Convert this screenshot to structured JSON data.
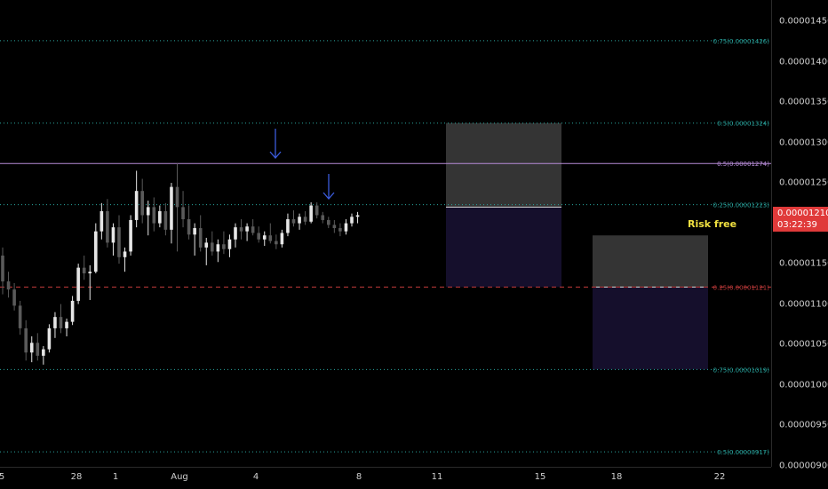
{
  "chart_data": {
    "type": "candlestick",
    "title": "",
    "y_axis": {
      "ticks": [
        "0.00001450",
        "0.00001400",
        "0.00001350",
        "0.00001300",
        "0.00001250",
        "0.00001200",
        "0.00001150",
        "0.00001100",
        "0.00001050",
        "0.00001000",
        "0.00000950",
        "0.00000900"
      ],
      "range": [
        8.985e-06,
        1.4764e-05
      ]
    },
    "x_axis": {
      "ticks": [
        "5",
        "28",
        "1",
        "Aug",
        "4",
        "8",
        "11",
        "15",
        "18",
        "22"
      ]
    },
    "current_price": {
      "value": "0.00001210",
      "countdown": "03:22:39",
      "color": "#e03a3a"
    },
    "candles": [
      [
        1.16e-05,
        1.17e-05,
        1.112e-05,
        1.128e-05
      ],
      [
        1.128e-05,
        1.14e-05,
        1.108e-05,
        1.118e-05
      ],
      [
        1.118e-05,
        1.126e-05,
        1.092e-05,
        1.098e-05
      ],
      [
        1.098e-05,
        1.104e-05,
        1.062e-05,
        1.07e-05
      ],
      [
        1.07e-05,
        1.08e-05,
        1.03e-05,
        1.04e-05
      ],
      [
        1.04e-05,
        1.06e-05,
        1.028e-05,
        1.052e-05
      ],
      [
        1.052e-05,
        1.064e-05,
        1.03e-05,
        1.036e-05
      ],
      [
        1.036e-05,
        1.048e-05,
        1.025e-05,
        1.044e-05
      ],
      [
        1.044e-05,
        1.075e-05,
        1.04e-05,
        1.07e-05
      ],
      [
        1.07e-05,
        1.09e-05,
        1.058e-05,
        1.084e-05
      ],
      [
        1.084e-05,
        1.1e-05,
        1.064e-05,
        1.07e-05
      ],
      [
        1.07e-05,
        1.082e-05,
        1.06e-05,
        1.078e-05
      ],
      [
        1.078e-05,
        1.11e-05,
        1.074e-05,
        1.104e-05
      ],
      [
        1.104e-05,
        1.15e-05,
        1.1e-05,
        1.145e-05
      ],
      [
        1.145e-05,
        1.16e-05,
        1.13e-05,
        1.138e-05
      ],
      [
        1.138e-05,
        1.148e-05,
        1.105e-05,
        1.14e-05
      ],
      [
        1.14e-05,
        1.2e-05,
        1.138e-05,
        1.19e-05
      ],
      [
        1.19e-05,
        1.225e-05,
        1.18e-05,
        1.215e-05
      ],
      [
        1.215e-05,
        1.23e-05,
        1.17e-05,
        1.176e-05
      ],
      [
        1.176e-05,
        1.2e-05,
        1.16e-05,
        1.195e-05
      ],
      [
        1.195e-05,
        1.21e-05,
        1.15e-05,
        1.158e-05
      ],
      [
        1.158e-05,
        1.17e-05,
        1.14e-05,
        1.165e-05
      ],
      [
        1.165e-05,
        1.21e-05,
        1.16e-05,
        1.204e-05
      ],
      [
        1.204e-05,
        1.265e-05,
        1.195e-05,
        1.24e-05
      ],
      [
        1.24e-05,
        1.255e-05,
        1.2e-05,
        1.21e-05
      ],
      [
        1.21e-05,
        1.228e-05,
        1.185e-05,
        1.22e-05
      ],
      [
        1.22e-05,
        1.232e-05,
        1.19e-05,
        1.2e-05
      ],
      [
        1.2e-05,
        1.222e-05,
        1.195e-05,
        1.215e-05
      ],
      [
        1.215e-05,
        1.225e-05,
        1.185e-05,
        1.192e-05
      ],
      [
        1.192e-05,
        1.25e-05,
        1.175e-05,
        1.245e-05
      ],
      [
        1.245e-05,
        1.274e-05,
        1.165e-05,
        1.22e-05
      ],
      [
        1.22e-05,
        1.24e-05,
        1.195e-05,
        1.205e-05
      ],
      [
        1.205e-05,
        1.222e-05,
        1.18e-05,
        1.186e-05
      ],
      [
        1.186e-05,
        1.2e-05,
        1.16e-05,
        1.194e-05
      ],
      [
        1.194e-05,
        1.21e-05,
        1.165e-05,
        1.17e-05
      ],
      [
        1.17e-05,
        1.182e-05,
        1.148e-05,
        1.176e-05
      ],
      [
        1.176e-05,
        1.19e-05,
        1.16e-05,
        1.165e-05
      ],
      [
        1.165e-05,
        1.18e-05,
        1.152e-05,
        1.174e-05
      ],
      [
        1.174e-05,
        1.19e-05,
        1.162e-05,
        1.168e-05
      ],
      [
        1.168e-05,
        1.186e-05,
        1.158e-05,
        1.18e-05
      ],
      [
        1.18e-05,
        1.2e-05,
        1.17e-05,
        1.195e-05
      ],
      [
        1.195e-05,
        1.205e-05,
        1.18e-05,
        1.19e-05
      ],
      [
        1.19e-05,
        1.2e-05,
        1.178e-05,
        1.196e-05
      ],
      [
        1.196e-05,
        1.205e-05,
        1.185e-05,
        1.188e-05
      ],
      [
        1.188e-05,
        1.196e-05,
        1.176e-05,
        1.18e-05
      ],
      [
        1.18e-05,
        1.19e-05,
        1.172e-05,
        1.185e-05
      ],
      [
        1.185e-05,
        1.2e-05,
        1.175e-05,
        1.178e-05
      ],
      [
        1.178e-05,
        1.186e-05,
        1.168e-05,
        1.174e-05
      ],
      [
        1.174e-05,
        1.192e-05,
        1.17e-05,
        1.188e-05
      ],
      [
        1.188e-05,
        1.212e-05,
        1.184e-05,
        1.205e-05
      ],
      [
        1.205e-05,
        1.216e-05,
        1.196e-05,
        1.2e-05
      ],
      [
        1.2e-05,
        1.212e-05,
        1.192e-05,
        1.208e-05
      ],
      [
        1.208e-05,
        1.215e-05,
        1.198e-05,
        1.202e-05
      ],
      [
        1.202e-05,
        1.226e-05,
        1.2e-05,
        1.222e-05
      ],
      [
        1.222e-05,
        1.226e-05,
        1.206e-05,
        1.21e-05
      ],
      [
        1.21e-05,
        1.214e-05,
        1.2e-05,
        1.204e-05
      ],
      [
        1.204e-05,
        1.208e-05,
        1.194e-05,
        1.198e-05
      ],
      [
        1.198e-05,
        1.204e-05,
        1.188e-05,
        1.194e-05
      ],
      [
        1.194e-05,
        1.2e-05,
        1.184e-05,
        1.19e-05
      ],
      [
        1.19e-05,
        1.205e-05,
        1.186e-05,
        1.2e-05
      ],
      [
        1.2e-05,
        1.212e-05,
        1.196e-05,
        1.208e-05
      ],
      [
        1.208e-05,
        1.214e-05,
        1.2e-05,
        1.21e-05
      ]
    ],
    "candle_colors": {
      "up": "#e6e6e6",
      "down": "#5a5a5a"
    },
    "horizontal_lines": [
      {
        "price": 1.426e-05,
        "label": "0.75(0.00001426)",
        "style": "dotted",
        "color": "#2aa7a0"
      },
      {
        "price": 1.324e-05,
        "label": "0.5(0.00001324)",
        "style": "dotted",
        "color": "#2aa7a0"
      },
      {
        "price": 1.274e-05,
        "label": "0.5(0.00001274)",
        "style": "solid",
        "color": "#b88cd8"
      },
      {
        "price": 1.223e-05,
        "label": "0.25(0.00001223)",
        "style": "dotted",
        "color": "#2aa7a0"
      },
      {
        "price": 1.121e-05,
        "label": "0.25(0.00001121)",
        "style": "dashed",
        "color": "#c03a3a"
      },
      {
        "price": 1.019e-05,
        "label": "0.75(0.00001019)",
        "style": "dotted",
        "color": "#2aa7a0"
      },
      {
        "price": 9.17e-06,
        "label": "0.5(0.00000917)",
        "style": "dotted",
        "color": "#2aa7a0"
      }
    ],
    "positions": [
      {
        "entry": 1.22e-05,
        "target": 1.324e-05,
        "stop": 1.121e-05
      },
      {
        "entry": 1.121e-05,
        "target": 1.185e-05,
        "stop": 1.019e-05,
        "label": "Risk free"
      }
    ],
    "annotations": [
      {
        "type": "arrow-down",
        "color": "#3b5bdb"
      },
      {
        "type": "arrow-down",
        "color": "#3b5bdb"
      }
    ]
  }
}
